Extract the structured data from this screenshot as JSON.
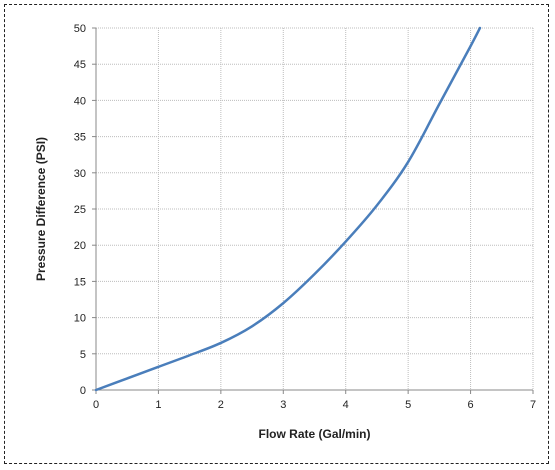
{
  "chart_data": {
    "type": "line",
    "title": "",
    "xlabel": "Flow Rate (Gal/min)",
    "ylabel": "Pressure Difference (PSI)",
    "xlim": [
      0,
      7
    ],
    "ylim": [
      0,
      50
    ],
    "x_ticks": [
      0,
      1,
      2,
      3,
      4,
      5,
      6,
      7
    ],
    "y_ticks": [
      0,
      5,
      10,
      15,
      20,
      25,
      30,
      35,
      40,
      45,
      50
    ],
    "grid": true,
    "legend": "none",
    "series_color": "#4a7ebb",
    "series": [
      {
        "x": [
          0,
          0.5,
          1,
          1.5,
          2,
          2.5,
          3,
          3.5,
          4,
          4.5,
          5,
          5.5,
          6,
          6.15
        ],
        "y": [
          0,
          1.6,
          3.2,
          4.8,
          6.5,
          8.8,
          12.0,
          16.0,
          20.5,
          25.5,
          31.5,
          39.5,
          47.5,
          50
        ]
      }
    ]
  }
}
